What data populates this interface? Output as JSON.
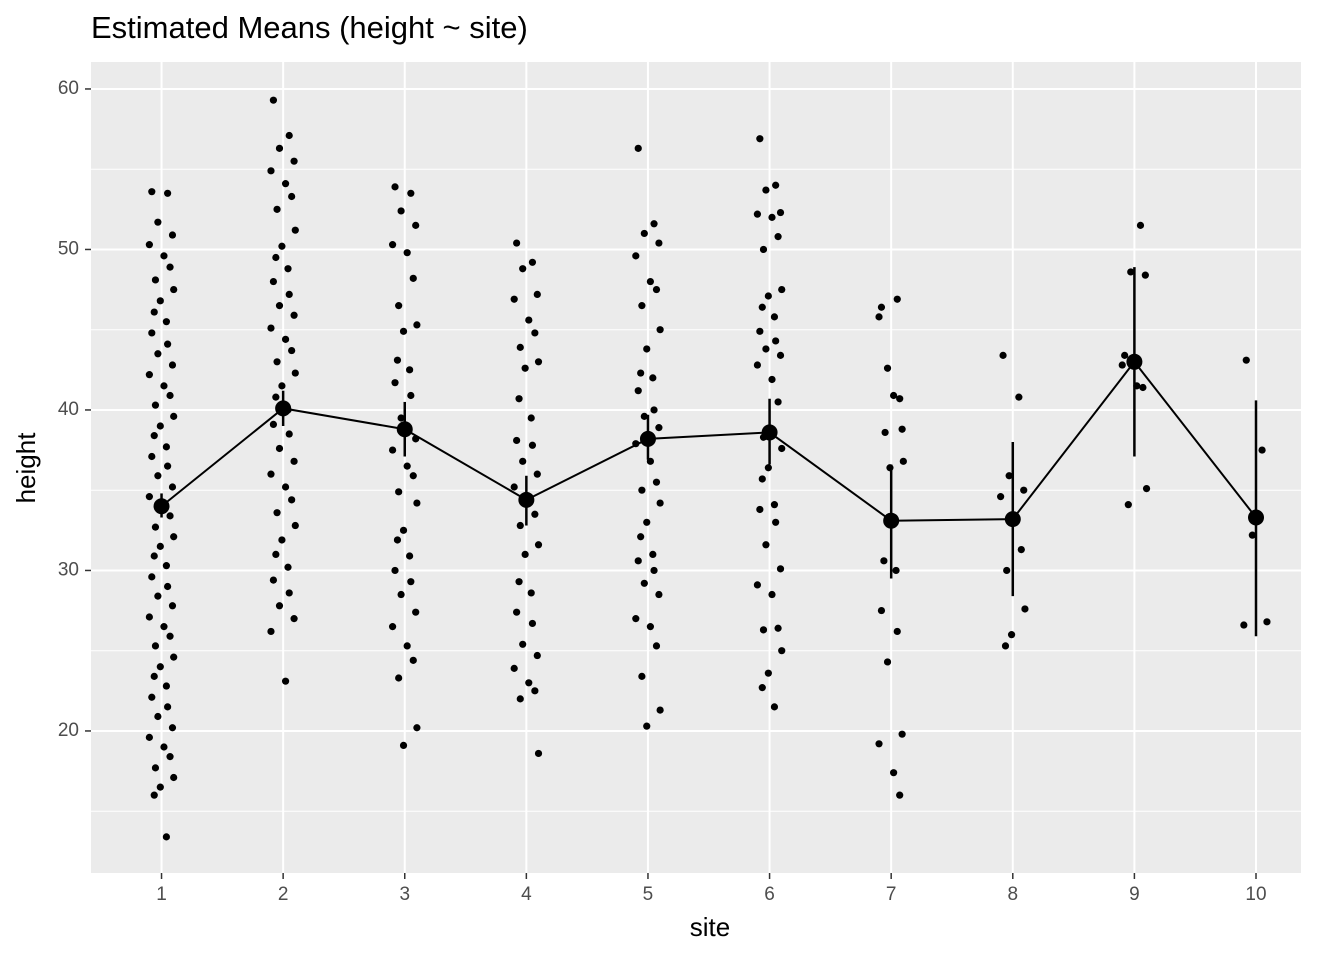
{
  "chart_data": {
    "type": "point-range",
    "title": "Estimated Means (height ~ site)",
    "x_label": "site",
    "y_label": "height",
    "categories": [
      "1",
      "2",
      "3",
      "4",
      "5",
      "6",
      "7",
      "8",
      "9",
      "10"
    ],
    "xlim": [
      0.42,
      10.37
    ],
    "ylim": [
      11.15,
      61.68
    ],
    "yticks": [
      20,
      30,
      40,
      50,
      60
    ],
    "yminor": [
      15,
      25,
      35,
      45,
      55
    ],
    "grid": true,
    "means": {
      "color": "#000000",
      "values": [
        34.0,
        40.1,
        38.8,
        34.4,
        38.2,
        38.6,
        33.1,
        33.2,
        43.0,
        33.3
      ],
      "lower": [
        33.3,
        39.0,
        37.1,
        32.8,
        36.9,
        36.6,
        29.5,
        28.4,
        37.1,
        25.9
      ],
      "upper": [
        34.8,
        41.2,
        40.5,
        35.9,
        39.7,
        40.7,
        36.6,
        38.0,
        48.9,
        40.6
      ]
    },
    "points_color": "#000000",
    "points": [
      {
        "x": [
          0.92,
          1.05,
          0.97,
          1.09,
          0.9,
          1.02,
          1.07,
          0.95,
          1.1,
          0.99,
          0.94,
          1.04,
          0.92,
          1.05,
          0.97,
          1.09,
          0.9,
          1.02,
          1.07,
          0.95,
          1.1,
          0.99,
          0.94,
          1.04,
          0.92,
          1.05,
          0.97,
          1.09,
          0.9,
          1.02,
          1.07,
          0.95,
          1.1,
          0.99,
          0.94,
          1.04,
          0.92,
          1.05,
          0.97,
          1.09,
          0.9,
          1.02,
          1.07,
          0.95,
          1.1,
          0.99,
          0.94,
          1.04,
          0.92,
          1.05,
          0.97,
          1.09,
          0.9,
          1.02,
          1.07,
          0.95,
          1.1,
          0.99,
          0.94,
          1.04
        ],
        "values": [
          53.6,
          53.5,
          51.7,
          50.9,
          50.3,
          49.6,
          48.9,
          48.1,
          47.5,
          46.8,
          46.1,
          45.5,
          44.8,
          44.1,
          43.5,
          42.8,
          42.2,
          41.5,
          40.9,
          40.3,
          39.6,
          39.0,
          38.4,
          37.7,
          37.1,
          36.5,
          35.9,
          35.2,
          34.6,
          34.0,
          33.4,
          32.7,
          32.1,
          31.5,
          30.9,
          30.3,
          29.6,
          29.0,
          28.4,
          27.8,
          27.1,
          26.5,
          25.9,
          25.3,
          24.6,
          24.0,
          23.4,
          22.8,
          22.1,
          21.5,
          20.9,
          20.2,
          19.6,
          19.0,
          18.4,
          17.7,
          17.1,
          16.5,
          16.0,
          13.4
        ]
      },
      {
        "x": [
          1.92,
          2.05,
          1.97,
          2.09,
          1.9,
          2.02,
          2.07,
          1.95,
          2.1,
          1.99,
          1.94,
          2.04,
          1.92,
          2.05,
          1.97,
          2.09,
          1.9,
          2.02,
          2.07,
          1.95,
          2.1,
          1.99,
          1.94,
          2.04,
          1.92,
          2.05,
          1.97,
          2.09,
          1.9,
          2.02,
          2.07,
          1.95,
          2.1,
          1.99,
          1.94,
          2.04,
          1.92,
          2.05,
          1.97,
          2.09,
          1.9,
          2.02
        ],
        "values": [
          59.3,
          57.1,
          56.3,
          55.5,
          54.9,
          54.1,
          53.3,
          52.5,
          51.2,
          50.2,
          49.5,
          48.8,
          48.0,
          47.2,
          46.5,
          45.9,
          45.1,
          44.4,
          43.7,
          43.0,
          42.3,
          41.5,
          40.8,
          40.0,
          39.1,
          38.5,
          37.6,
          36.8,
          36.0,
          35.2,
          34.4,
          33.6,
          32.8,
          31.9,
          31.0,
          30.2,
          29.4,
          28.6,
          27.8,
          27.0,
          26.2,
          23.1
        ]
      },
      {
        "x": [
          2.92,
          3.05,
          2.97,
          3.09,
          2.9,
          3.02,
          3.07,
          2.95,
          3.1,
          2.99,
          2.94,
          3.04,
          2.92,
          3.05,
          2.97,
          3.09,
          2.9,
          3.02,
          3.07,
          2.95,
          3.1,
          2.99,
          2.94,
          3.04,
          2.92,
          3.05,
          2.97,
          3.09,
          2.9,
          3.02,
          3.07,
          2.95,
          3.1,
          2.99
        ],
        "values": [
          53.9,
          53.5,
          52.4,
          51.5,
          50.3,
          49.8,
          48.2,
          46.5,
          45.3,
          44.9,
          43.1,
          42.5,
          41.7,
          40.9,
          39.5,
          38.2,
          37.5,
          36.5,
          35.9,
          34.9,
          34.2,
          32.5,
          31.9,
          30.9,
          30.0,
          29.3,
          28.5,
          27.4,
          26.5,
          25.3,
          24.4,
          23.3,
          20.2,
          19.1
        ]
      },
      {
        "x": [
          3.92,
          4.05,
          3.97,
          4.09,
          3.9,
          4.02,
          4.07,
          3.95,
          4.1,
          3.99,
          3.94,
          4.04,
          3.92,
          4.05,
          3.97,
          4.09,
          3.9,
          4.02,
          4.07,
          3.95,
          4.1,
          3.99,
          3.94,
          4.04,
          3.92,
          4.05,
          3.97,
          4.09,
          3.9,
          4.02,
          4.07,
          3.95,
          4.1
        ],
        "values": [
          50.4,
          49.2,
          48.8,
          47.2,
          46.9,
          45.6,
          44.8,
          43.9,
          43.0,
          42.6,
          40.7,
          39.5,
          38.1,
          37.8,
          36.8,
          36.0,
          35.2,
          34.4,
          33.5,
          32.8,
          31.6,
          31.0,
          29.3,
          28.6,
          27.4,
          26.7,
          25.4,
          24.7,
          23.9,
          23.0,
          22.5,
          22.0,
          18.6
        ]
      },
      {
        "x": [
          4.92,
          5.05,
          4.97,
          5.09,
          4.9,
          5.02,
          5.07,
          4.95,
          5.1,
          4.99,
          4.94,
          5.04,
          4.92,
          5.05,
          4.97,
          5.09,
          4.9,
          5.02,
          5.07,
          4.95,
          5.1,
          4.99,
          4.94,
          5.04,
          4.92,
          5.05,
          4.97,
          5.09,
          4.9,
          5.02,
          5.07,
          4.95,
          5.1,
          4.99
        ],
        "values": [
          56.3,
          51.6,
          51.0,
          50.4,
          49.6,
          48.0,
          47.5,
          46.5,
          45.0,
          43.8,
          42.3,
          42.0,
          41.2,
          40.0,
          39.6,
          38.9,
          37.9,
          36.8,
          35.5,
          35.0,
          34.2,
          33.0,
          32.1,
          31.0,
          30.6,
          30.0,
          29.2,
          28.5,
          27.0,
          26.5,
          25.3,
          23.4,
          21.3,
          20.3
        ]
      },
      {
        "x": [
          5.92,
          6.05,
          5.97,
          6.09,
          5.9,
          6.02,
          6.07,
          5.95,
          6.1,
          5.99,
          5.94,
          6.04,
          5.92,
          6.05,
          5.97,
          6.09,
          5.9,
          6.02,
          6.07,
          5.95,
          6.1,
          5.99,
          5.94,
          6.04,
          5.92,
          6.05,
          5.97,
          6.09,
          5.9,
          6.02,
          6.07,
          5.95,
          6.1,
          5.99,
          5.94,
          6.04
        ],
        "values": [
          56.9,
          54.0,
          53.7,
          52.3,
          52.2,
          52.0,
          50.8,
          50.0,
          47.5,
          47.1,
          46.4,
          45.8,
          44.9,
          44.3,
          43.8,
          43.4,
          42.8,
          41.9,
          40.5,
          38.3,
          37.6,
          36.4,
          35.7,
          34.1,
          33.8,
          33.0,
          31.6,
          30.1,
          29.1,
          28.5,
          26.4,
          26.3,
          25.0,
          23.6,
          22.7,
          21.5
        ]
      },
      {
        "x": [
          6.92,
          7.05,
          6.97,
          7.09,
          6.9,
          7.02,
          7.07,
          6.95,
          7.1,
          6.99,
          6.94,
          7.04,
          6.92,
          7.05,
          6.97,
          7.09,
          6.9,
          7.02,
          7.07
        ],
        "values": [
          46.4,
          46.9,
          42.6,
          38.8,
          45.8,
          40.9,
          40.7,
          38.6,
          36.8,
          36.4,
          30.6,
          30.0,
          27.5,
          26.2,
          24.3,
          19.8,
          19.2,
          17.4,
          16.0
        ]
      },
      {
        "x": [
          7.92,
          8.05,
          7.97,
          8.09,
          7.9,
          8.02,
          8.07,
          7.95,
          8.1,
          7.99,
          7.94
        ],
        "values": [
          43.4,
          40.8,
          35.9,
          35.0,
          34.6,
          33.1,
          31.3,
          30.0,
          27.6,
          26.0,
          25.3
        ]
      },
      {
        "x": [
          8.92,
          9.05,
          8.97,
          9.09,
          8.9,
          9.02,
          9.07,
          8.95,
          9.1
        ],
        "values": [
          43.4,
          51.5,
          48.6,
          48.4,
          42.8,
          41.5,
          41.4,
          34.1,
          35.1
        ]
      },
      {
        "x": [
          9.92,
          10.05,
          9.97,
          10.09,
          9.9
        ],
        "values": [
          43.1,
          37.5,
          32.2,
          26.8,
          26.6
        ]
      }
    ]
  }
}
